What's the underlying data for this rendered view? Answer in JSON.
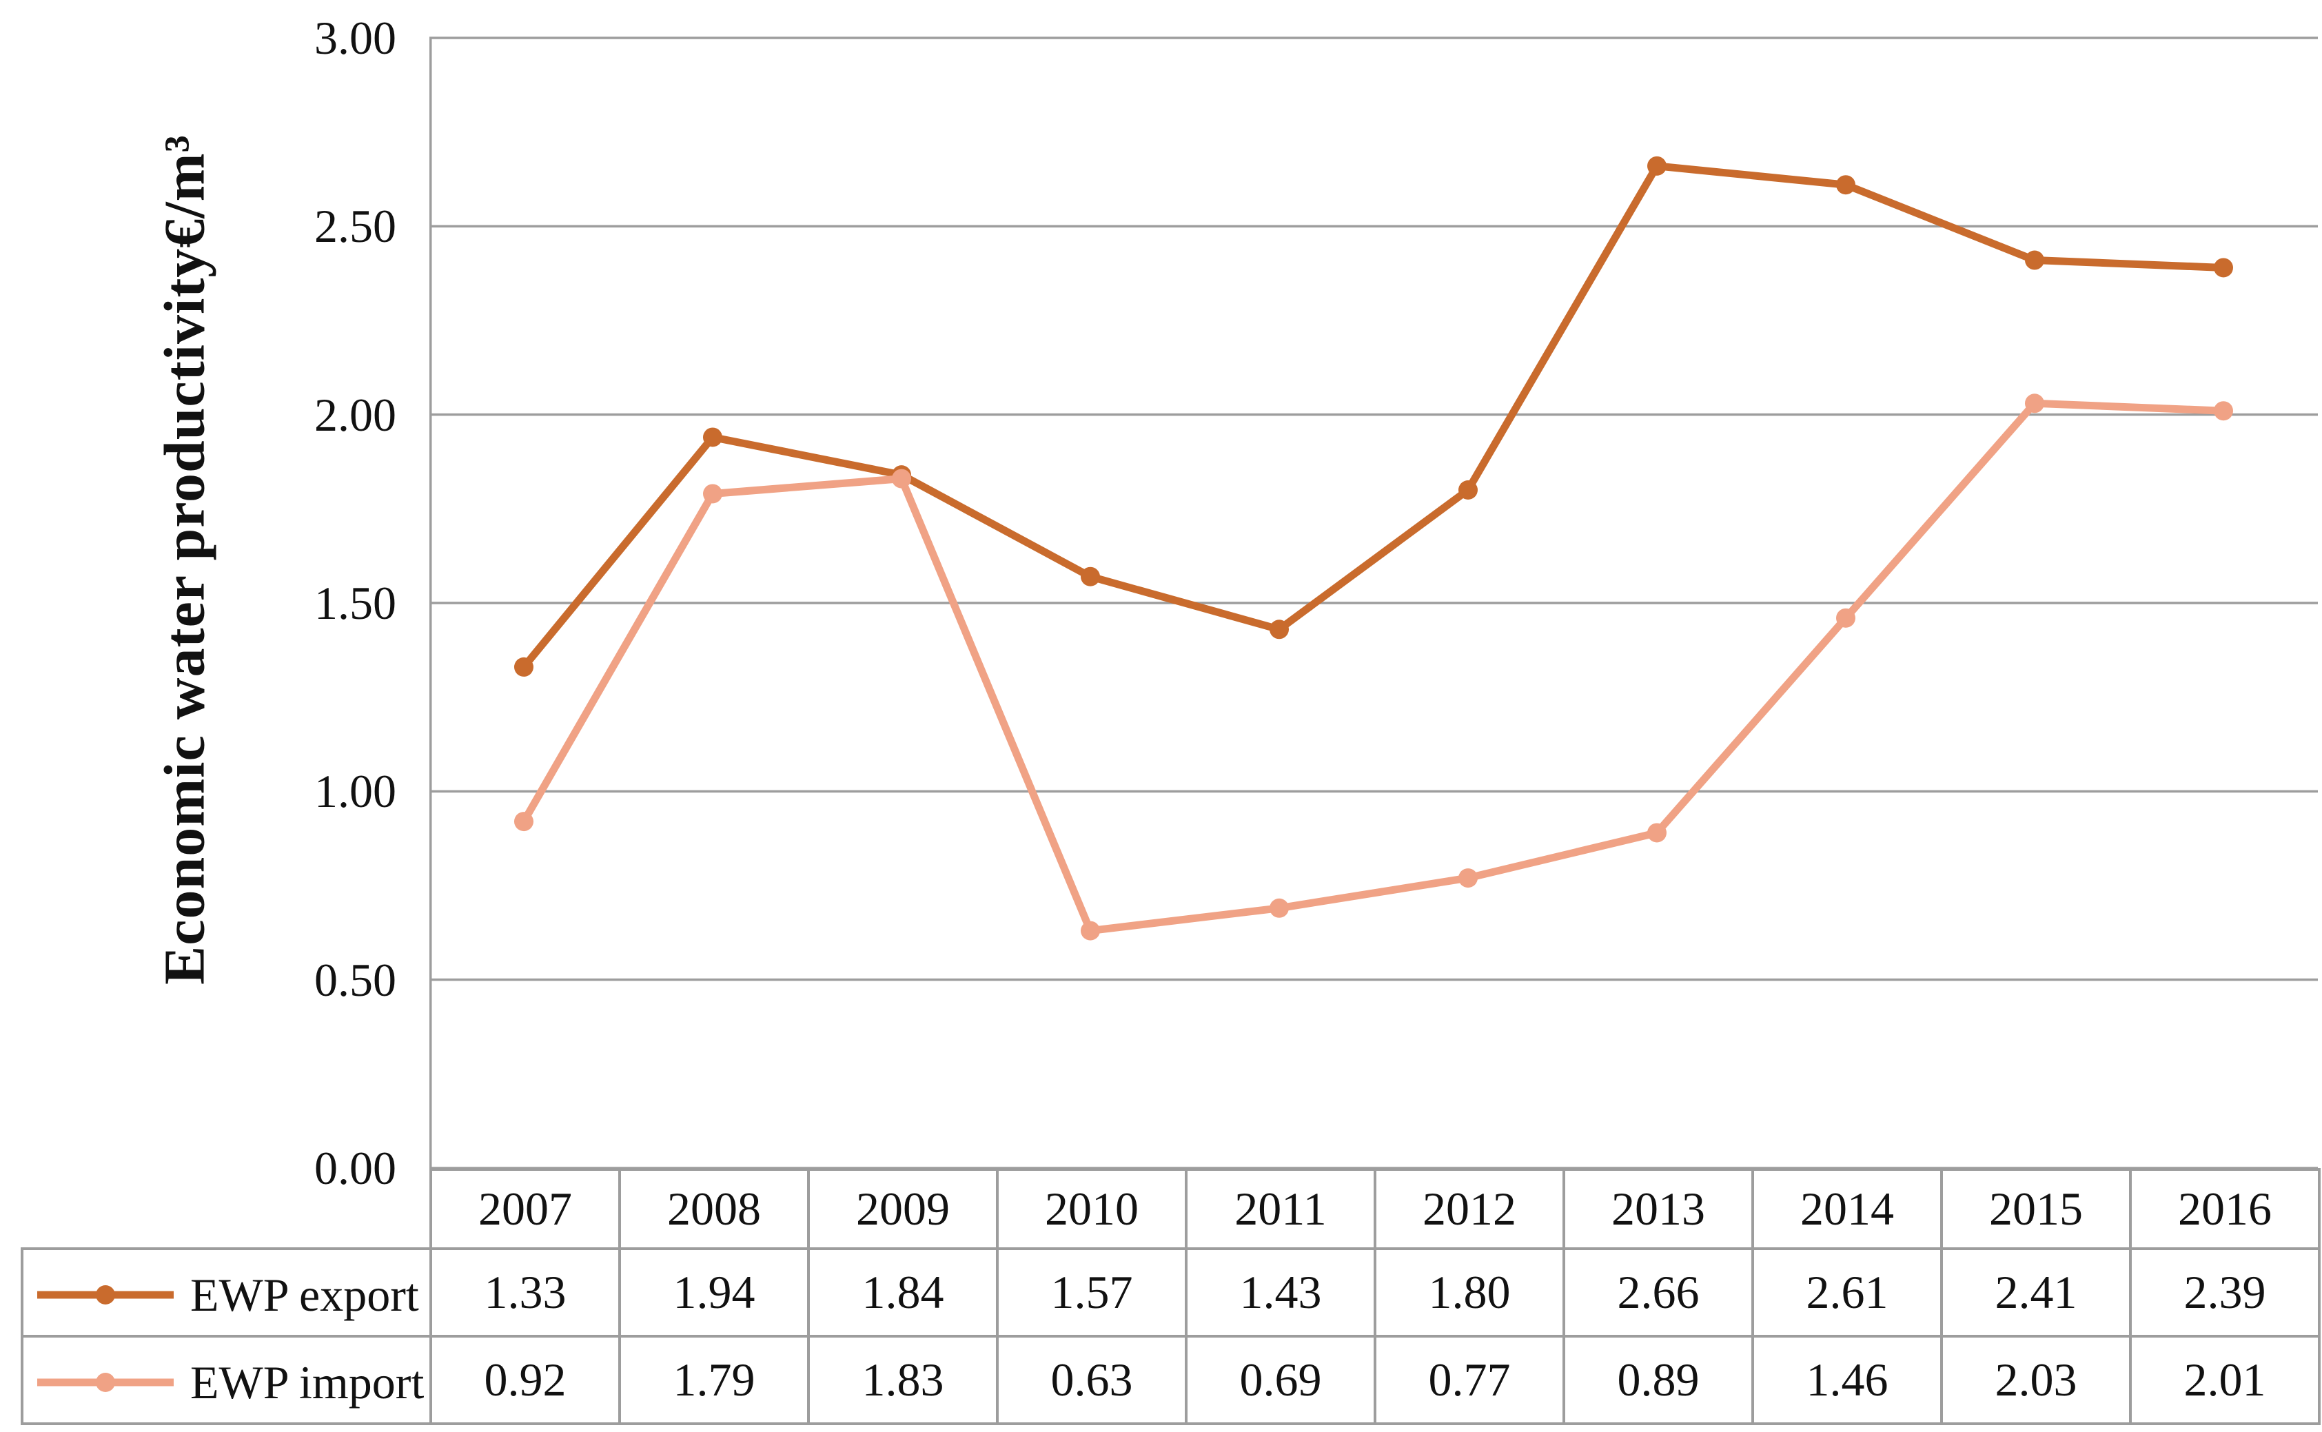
{
  "chart_data": {
    "type": "line",
    "x": [
      "2007",
      "2008",
      "2009",
      "2010",
      "2011",
      "2012",
      "2013",
      "2014",
      "2015",
      "2016"
    ],
    "series": [
      {
        "name": "EWP export",
        "color": "#c96b2d",
        "values": [
          1.33,
          1.94,
          1.84,
          1.57,
          1.43,
          1.8,
          2.66,
          2.61,
          2.41,
          2.39
        ]
      },
      {
        "name": "EWP import",
        "color": "#f0a285",
        "values": [
          0.92,
          1.79,
          1.83,
          0.63,
          0.69,
          0.77,
          0.89,
          1.46,
          2.03,
          2.01
        ]
      }
    ],
    "title": "",
    "xlabel": "",
    "ylabel": "Economic water productivity€/m³",
    "ylim": [
      0,
      3
    ],
    "ytick_labels": [
      "0.00",
      "0.50",
      "1.00",
      "1.50",
      "2.00",
      "2.50",
      "3.00"
    ],
    "value_format_decimals": 2,
    "grid": true,
    "gridline_color": "#9d9d9d",
    "axis_line_color": "#9d9d9d",
    "legend_position": "data-table-left"
  }
}
